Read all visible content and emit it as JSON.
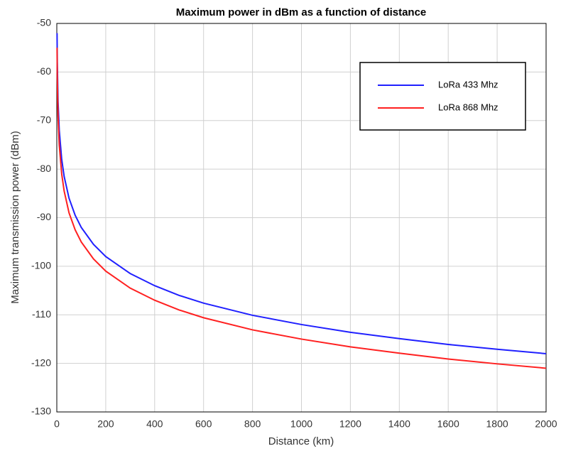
{
  "chart_data": {
    "type": "line",
    "title": "Maximum power in dBm as a function of distance",
    "x_label": "Distance (km)",
    "y_label": "Maximum transmission power (dBm)",
    "x": [
      1,
      2,
      5,
      10,
      20,
      30,
      50,
      75,
      100,
      150,
      200,
      300,
      400,
      500,
      600,
      800,
      1000,
      1200,
      1400,
      1600,
      1800,
      2000
    ],
    "series": [
      {
        "name": "LoRa 433 Mhz",
        "color": "#2020ff",
        "values": [
          -52,
          -58,
          -66,
          -72,
          -78,
          -81.5,
          -86,
          -89.5,
          -92,
          -95.5,
          -98,
          -101.5,
          -104,
          -106,
          -107.6,
          -110.1,
          -112,
          -113.6,
          -114.9,
          -116.1,
          -117.1,
          -118
        ]
      },
      {
        "name": "LoRa 868 Mhz",
        "color": "#ff2020",
        "values": [
          -55,
          -61,
          -69,
          -75,
          -81,
          -84.5,
          -89,
          -92.5,
          -95,
          -98.5,
          -101,
          -104.5,
          -107,
          -109,
          -110.6,
          -113.1,
          -115,
          -116.6,
          -117.9,
          -119.1,
          -120.1,
          -121
        ]
      }
    ],
    "xlim": [
      0,
      2000
    ],
    "xticks": [
      0,
      200,
      400,
      600,
      800,
      1000,
      1200,
      1400,
      1600,
      1800,
      2000
    ],
    "ylim": [
      -130,
      -50
    ],
    "yticks": [
      -130,
      -120,
      -110,
      -100,
      -90,
      -80,
      -70,
      -60,
      -50
    ],
    "grid": true,
    "legend": "upper right"
  }
}
